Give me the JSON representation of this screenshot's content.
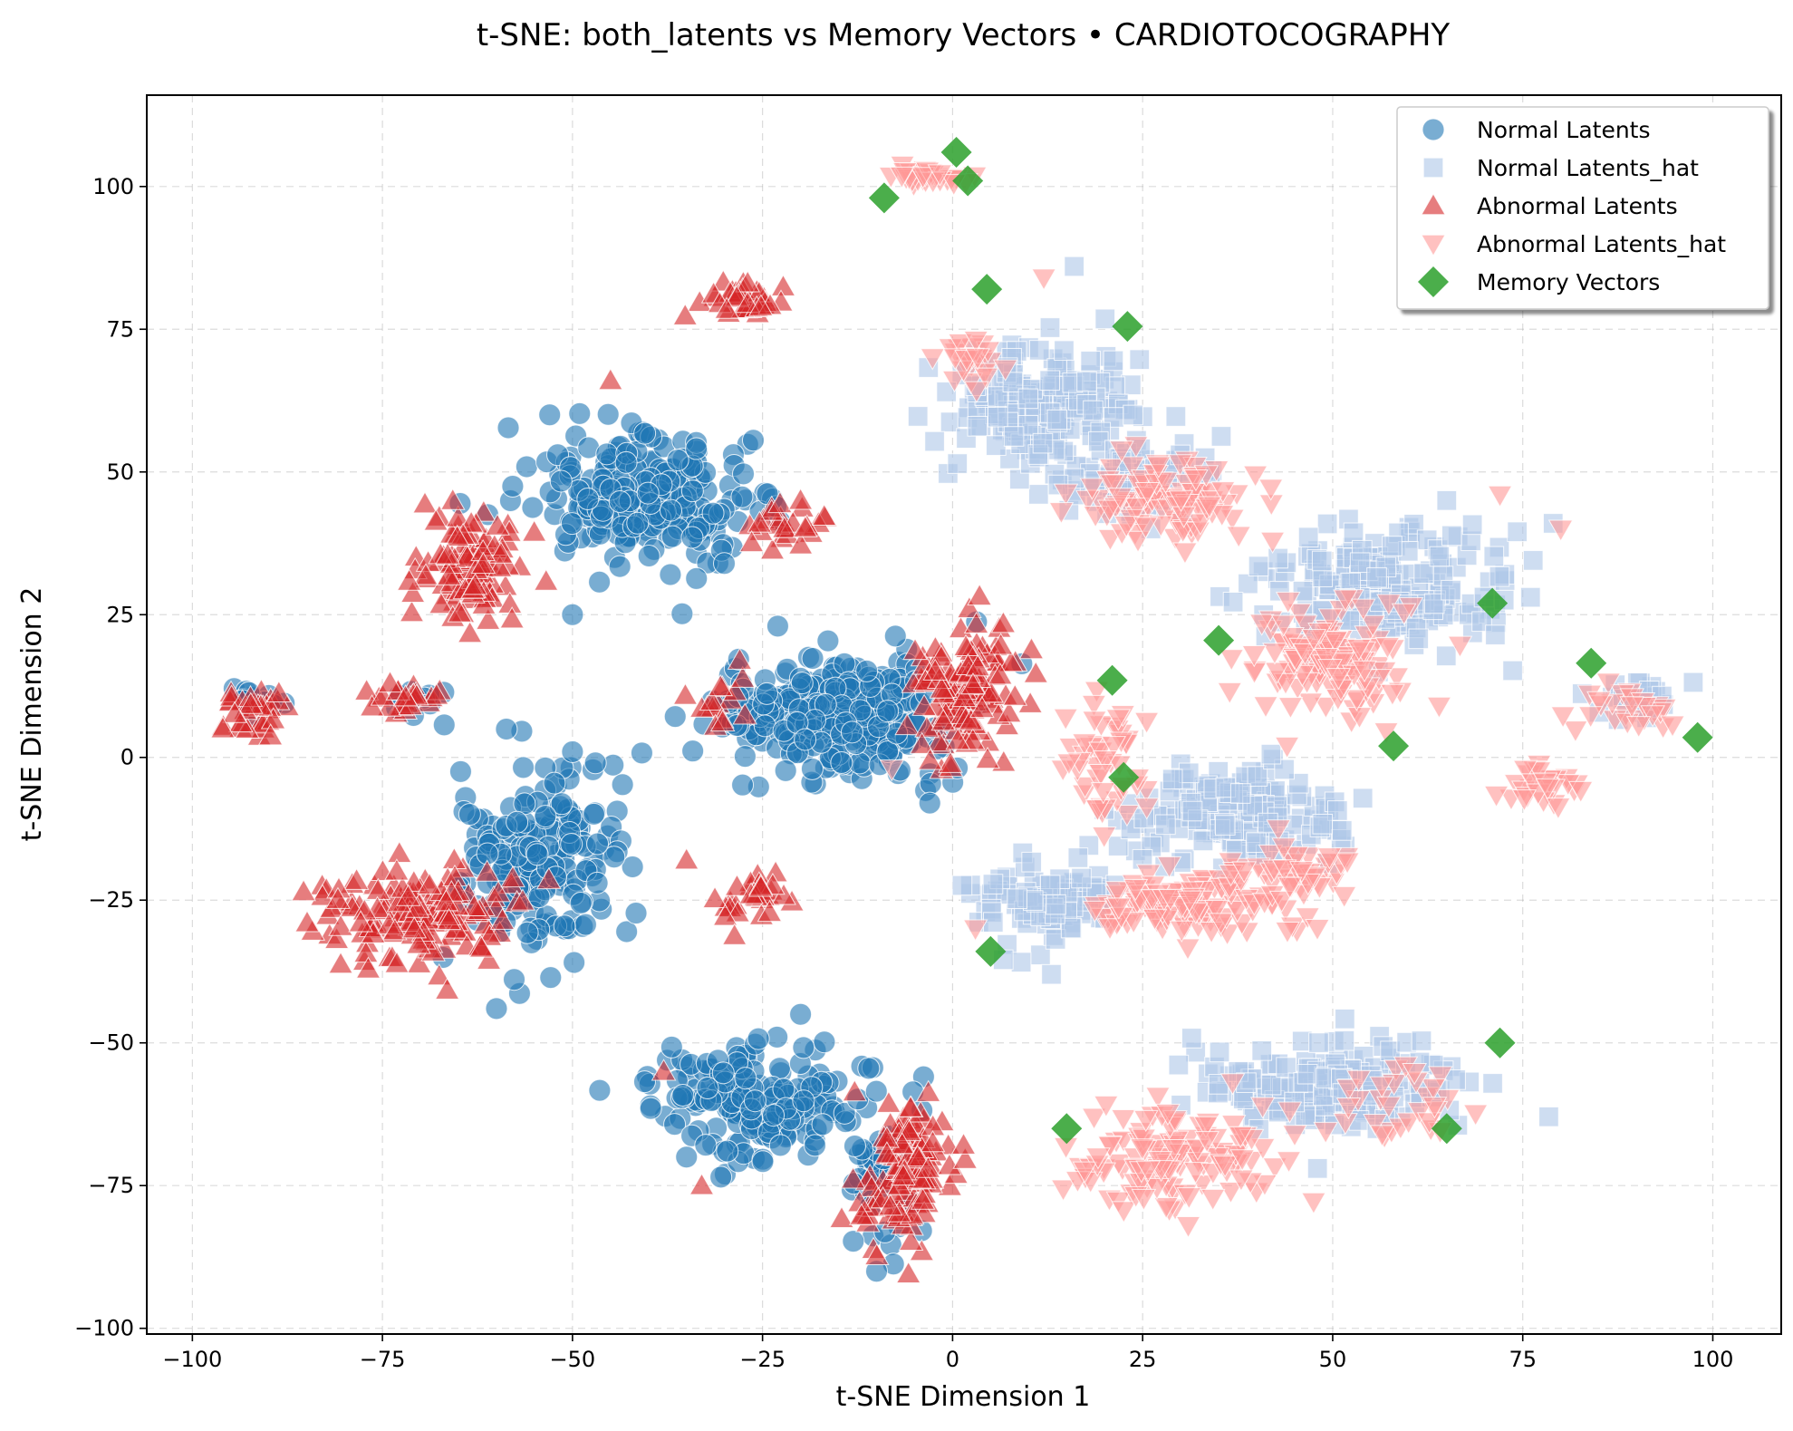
{
  "chart_data": {
    "type": "scatter",
    "title": "t-SNE: both_latents vs Memory Vectors • CARDIOTOCOGRAPHY",
    "xlabel": "t-SNE Dimension 1",
    "ylabel": "t-SNE Dimension 2",
    "xlim": [
      -106,
      109
    ],
    "ylim": [
      -101,
      116
    ],
    "xticks": [
      -100,
      -75,
      -50,
      -25,
      0,
      25,
      50,
      75,
      100
    ],
    "xtick_labels": [
      "−100",
      "−75",
      "−50",
      "−25",
      "0",
      "25",
      "50",
      "75",
      "100"
    ],
    "yticks": [
      -100,
      -75,
      -50,
      -25,
      0,
      25,
      50,
      75,
      100
    ],
    "ytick_labels": [
      "−100",
      "−75",
      "−50",
      "−25",
      "0",
      "25",
      "50",
      "75",
      "100"
    ],
    "grid": true,
    "legend_position": "top-right",
    "series": [
      {
        "name": "Normal Latents",
        "marker": "circle",
        "color": "#1f77b4",
        "opacity": 0.6,
        "clusters": [
          {
            "center": [
              -40,
              45
            ],
            "spread": [
              13,
              10
            ],
            "count": 260
          },
          {
            "center": [
              -15,
              7
            ],
            "spread": [
              14,
              9
            ],
            "count": 320
          },
          {
            "center": [
              -55,
              -18
            ],
            "spread": [
              11,
              16
            ],
            "count": 190
          },
          {
            "center": [
              -25,
              -60
            ],
            "spread": [
              13,
              9
            ],
            "count": 180
          },
          {
            "center": [
              -10,
              -75
            ],
            "spread": [
              5,
              8
            ],
            "count": 40
          },
          {
            "center": [
              -92,
              10
            ],
            "spread": [
              3,
              3
            ],
            "count": 14
          },
          {
            "center": [
              -70,
              10
            ],
            "spread": [
              4,
              2
            ],
            "count": 10
          }
        ],
        "points": [
          [
            -50,
            25
          ],
          [
            -53,
            60
          ],
          [
            -23,
            23
          ],
          [
            -3,
            -8
          ],
          [
            -50,
            1
          ],
          [
            -60,
            -44
          ],
          [
            -10,
            -90
          ],
          [
            -35,
            -70
          ],
          [
            -20,
            -45
          ]
        ]
      },
      {
        "name": "Normal Latents_hat",
        "marker": "square",
        "color": "#aec7e8",
        "opacity": 0.6,
        "clusters": [
          {
            "center": [
              12,
              62
            ],
            "spread": [
              11,
              10
            ],
            "count": 200
          },
          {
            "center": [
              25,
              48
            ],
            "spread": [
              9,
              6
            ],
            "count": 90
          },
          {
            "center": [
              57,
              30
            ],
            "spread": [
              13,
              9
            ],
            "count": 220
          },
          {
            "center": [
              37,
              -10
            ],
            "spread": [
              13,
              8
            ],
            "count": 160
          },
          {
            "center": [
              13,
              -25
            ],
            "spread": [
              9,
              7
            ],
            "count": 90
          },
          {
            "center": [
              50,
              -57
            ],
            "spread": [
              15,
              7
            ],
            "count": 200
          },
          {
            "center": [
              90,
              10
            ],
            "spread": [
              6,
              3
            ],
            "count": 22
          }
        ],
        "points": [
          [
            16,
            86
          ],
          [
            48,
            -72
          ],
          [
            13,
            -38
          ],
          [
            65,
            45
          ],
          [
            79,
            41
          ],
          [
            56,
            15
          ]
        ]
      },
      {
        "name": "Abnormal Latents",
        "marker": "triangle-up",
        "color": "#d62728",
        "opacity": 0.6,
        "clusters": [
          {
            "center": [
              -63,
              33
            ],
            "spread": [
              6,
              9
            ],
            "count": 110
          },
          {
            "center": [
              -27,
              80
            ],
            "spread": [
              5,
              3
            ],
            "count": 35
          },
          {
            "center": [
              2,
              12
            ],
            "spread": [
              6,
              11
            ],
            "count": 130
          },
          {
            "center": [
              -70,
              -28
            ],
            "spread": [
              11,
              8
            ],
            "count": 150
          },
          {
            "center": [
              -6,
              -72
            ],
            "spread": [
              5,
              11
            ],
            "count": 130
          },
          {
            "center": [
              -92,
              8
            ],
            "spread": [
              4,
              4
            ],
            "count": 35
          },
          {
            "center": [
              -71,
              10
            ],
            "spread": [
              4,
              2
            ],
            "count": 25
          },
          {
            "center": [
              -25,
              -25
            ],
            "spread": [
              5,
              4
            ],
            "count": 30
          },
          {
            "center": [
              -30,
              10
            ],
            "spread": [
              6,
              5
            ],
            "count": 15
          },
          {
            "center": [
              -22,
              40
            ],
            "spread": [
              5,
              4
            ],
            "count": 25
          }
        ],
        "points": [
          [
            -45,
            66
          ],
          [
            -20,
            45
          ],
          [
            -35,
            -18
          ],
          [
            -33,
            -75
          ],
          [
            -38,
            -55
          ],
          [
            -74,
            13
          ],
          [
            -96,
            5
          ],
          [
            -28,
            17
          ]
        ]
      },
      {
        "name": "Abnormal Latents_hat",
        "marker": "triangle-down",
        "color": "#ff9896",
        "opacity": 0.6,
        "clusters": [
          {
            "center": [
              -3,
              102
            ],
            "spread": [
              4,
              2
            ],
            "count": 30
          },
          {
            "center": [
              28,
              45
            ],
            "spread": [
              10,
              6
            ],
            "count": 110
          },
          {
            "center": [
              3,
              70
            ],
            "spread": [
              4,
              6
            ],
            "count": 25
          },
          {
            "center": [
              50,
              17
            ],
            "spread": [
              10,
              8
            ],
            "count": 130
          },
          {
            "center": [
              90,
              8
            ],
            "spread": [
              7,
              4
            ],
            "count": 25
          },
          {
            "center": [
              78,
              -5
            ],
            "spread": [
              5,
              4
            ],
            "count": 30
          },
          {
            "center": [
              20,
              0
            ],
            "spread": [
              5,
              9
            ],
            "count": 50
          },
          {
            "center": [
              30,
              -26
            ],
            "spread": [
              12,
              5
            ],
            "count": 110
          },
          {
            "center": [
              45,
              -20
            ],
            "spread": [
              7,
              6
            ],
            "count": 50
          },
          {
            "center": [
              30,
              -70
            ],
            "spread": [
              13,
              8
            ],
            "count": 130
          },
          {
            "center": [
              60,
              -60
            ],
            "spread": [
              8,
              6
            ],
            "count": 30
          }
        ],
        "points": [
          [
            12,
            84
          ],
          [
            80,
            40
          ],
          [
            72,
            46
          ],
          [
            3,
            -30
          ],
          [
            31,
            -82
          ],
          [
            45,
            -66
          ],
          [
            -8,
            -2
          ],
          [
            44,
            2
          ],
          [
            64,
            9
          ]
        ]
      },
      {
        "name": "Memory Vectors",
        "marker": "diamond",
        "color": "#2ca02c",
        "opacity": 0.85,
        "points": [
          [
            0.5,
            106
          ],
          [
            2,
            101
          ],
          [
            -9,
            98
          ],
          [
            4.5,
            82
          ],
          [
            23,
            75.5
          ],
          [
            71,
            27
          ],
          [
            35,
            20.5
          ],
          [
            21,
            13.5
          ],
          [
            84,
            16.5
          ],
          [
            58,
            2
          ],
          [
            98,
            3.5
          ],
          [
            22.5,
            -3.5
          ],
          [
            5,
            -34
          ],
          [
            72,
            -50
          ],
          [
            15,
            -65
          ],
          [
            65,
            -65
          ]
        ]
      }
    ]
  }
}
